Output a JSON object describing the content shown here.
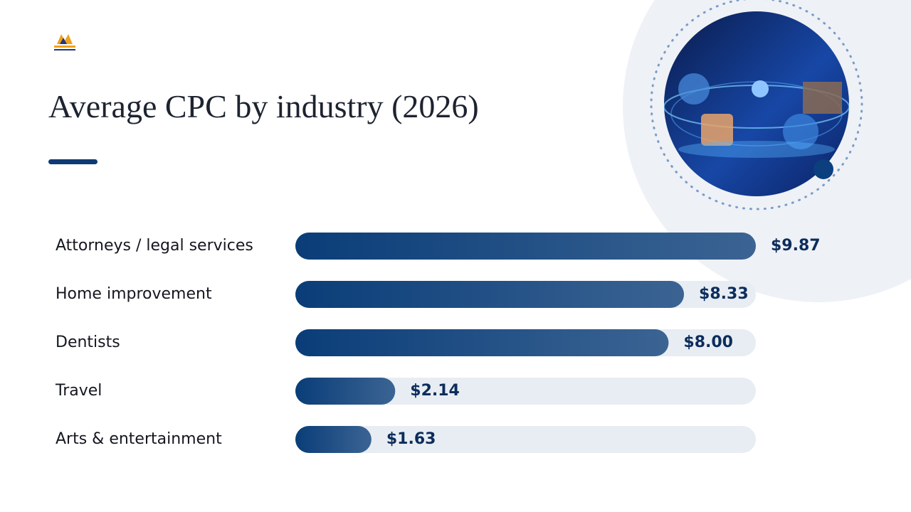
{
  "chart_data": {
    "type": "bar",
    "orientation": "horizontal",
    "title": "Average CPC by industry (2026)",
    "categories": [
      "Attorneys / legal services",
      "Home improvement",
      "Dentists",
      "Travel",
      "Arts & entertainment"
    ],
    "values": [
      9.87,
      8.33,
      8.0,
      2.14,
      1.63
    ],
    "value_labels": [
      "$9.87",
      "$8.33",
      "$8.00",
      "$2.14",
      "$1.63"
    ],
    "color": "#0a3d78",
    "xlim": [
      0,
      9.87
    ]
  }
}
